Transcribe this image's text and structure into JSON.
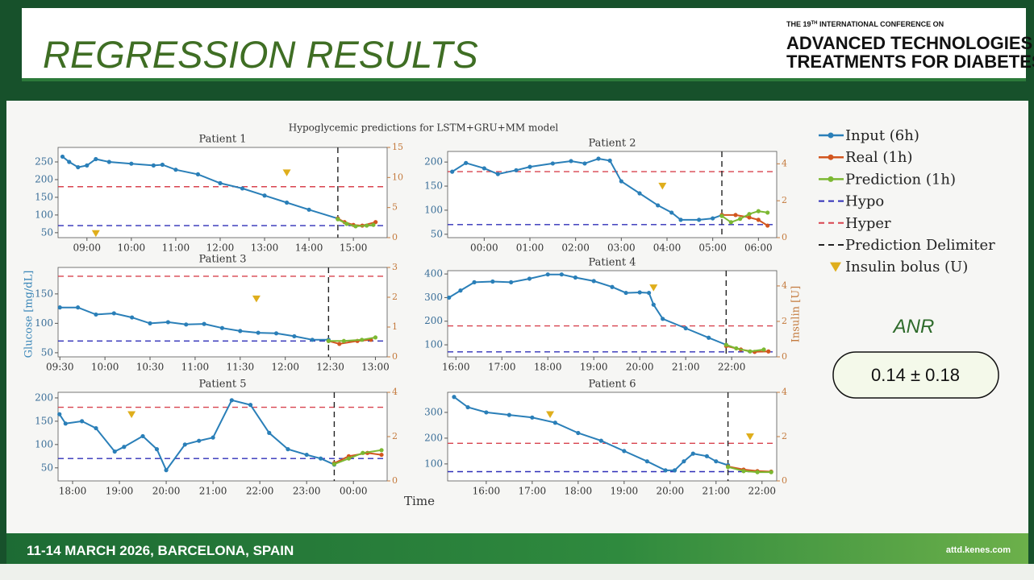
{
  "slide": {
    "title": "REGRESSION RESULTS",
    "conference": {
      "pre": "THE 19",
      "sup": "TH",
      "post": " INTERNATIONAL CONFERENCE ON",
      "line1": "ADVANCED TECHNOLOGIES &",
      "line2": "TREATMENTS FOR DIABETES"
    },
    "footer_left": "11-14 MARCH 2026, BARCELONA, SPAIN",
    "footer_right": "attd.kenes.com"
  },
  "figure": {
    "title": "Hypoglycemic predictions for LSTM+GRU+MM model",
    "ylabel": "Glucose [mg/dL]",
    "y2label": "Insulin [U]",
    "xlabel": "Time"
  },
  "legend": {
    "input": {
      "name": "Input (6h)",
      "color": "#2a7fb8"
    },
    "real": {
      "name": "Real (1h)",
      "color": "#d2561f"
    },
    "prediction": {
      "name": "Prediction (1h)",
      "color": "#7cb832"
    },
    "hypo": {
      "name": "Hypo",
      "color": "#2f2fb8",
      "value": 70
    },
    "hyper": {
      "name": "Hyper",
      "color": "#d8434f",
      "value": 180
    },
    "delimiter": {
      "name": "Prediction Delimiter",
      "color": "#222222"
    },
    "bolus": {
      "name": "Insulin bolus (U)",
      "color": "#dfae1c"
    }
  },
  "metric": {
    "label": "ANR",
    "value": "0.14 ± 0.18"
  },
  "chart_data": [
    {
      "type": "line",
      "title": "Patient 1",
      "xlim": [
        8.35,
        15.76
      ],
      "ylim": [
        36,
        291
      ],
      "y2lim": [
        0,
        15
      ],
      "xticks": [
        {
          "value": 9,
          "label": "09:00"
        },
        {
          "value": 10,
          "label": "10:00"
        },
        {
          "value": 11,
          "label": "11:00"
        },
        {
          "value": 12,
          "label": "12:00"
        },
        {
          "value": 13,
          "label": "13:00"
        },
        {
          "value": 14,
          "label": "14:00"
        },
        {
          "value": 15,
          "label": "15:00"
        }
      ],
      "yticks": [
        50,
        100,
        150,
        200,
        250
      ],
      "y2ticks": [
        0,
        5,
        10,
        15
      ],
      "delimiter": 14.65,
      "input": {
        "x": [
          8.45,
          8.6,
          8.8,
          9.0,
          9.2,
          9.5,
          10.0,
          10.5,
          10.7,
          11.0,
          11.5,
          12.0,
          12.5,
          13.0,
          13.5,
          14.0,
          14.65
        ],
        "values": [
          265,
          250,
          235,
          240,
          258,
          250,
          245,
          240,
          242,
          228,
          215,
          190,
          175,
          155,
          135,
          115,
          90
        ]
      },
      "real": {
        "x": [
          14.65,
          14.8,
          15.0,
          15.2,
          15.5
        ],
        "values": [
          90,
          80,
          72,
          70,
          80
        ]
      },
      "prediction": {
        "x": [
          14.65,
          14.85,
          15.05,
          15.3,
          15.45
        ],
        "values": [
          88,
          75,
          68,
          70,
          72
        ]
      },
      "bolus": {
        "axis": "y2",
        "x": [
          9.2,
          13.5
        ],
        "values": [
          0.7,
          10.8
        ]
      }
    },
    {
      "type": "line",
      "title": "Patient 2",
      "xlim": [
        23.2,
        30.4
      ],
      "ylim": [
        43,
        222
      ],
      "y2lim": [
        0,
        4.67
      ],
      "xticks": [
        {
          "value": 24,
          "label": "00:00"
        },
        {
          "value": 25,
          "label": "01:00"
        },
        {
          "value": 26,
          "label": "02:00"
        },
        {
          "value": 27,
          "label": "03:00"
        },
        {
          "value": 28,
          "label": "04:00"
        },
        {
          "value": 29,
          "label": "05:00"
        },
        {
          "value": 30,
          "label": "06:00"
        }
      ],
      "yticks": [
        50,
        100,
        150,
        200
      ],
      "y2ticks": [
        0,
        2,
        4
      ],
      "delimiter": 29.2,
      "input": {
        "x": [
          23.3,
          23.6,
          24.0,
          24.3,
          24.7,
          25.0,
          25.5,
          25.9,
          26.2,
          26.5,
          26.75,
          27.0,
          27.4,
          27.8,
          28.1,
          28.3,
          28.7,
          29.0,
          29.2
        ],
        "values": [
          180,
          198,
          187,
          175,
          183,
          190,
          197,
          202,
          197,
          207,
          203,
          160,
          135,
          110,
          95,
          80,
          80,
          83,
          90
        ]
      },
      "real": {
        "x": [
          29.2,
          29.5,
          29.8,
          30.0,
          30.2
        ],
        "values": [
          90,
          90,
          85,
          80,
          68
        ]
      },
      "prediction": {
        "x": [
          29.2,
          29.4,
          29.6,
          29.8,
          30.0,
          30.2
        ],
        "values": [
          88,
          75,
          82,
          92,
          98,
          95
        ]
      },
      "bolus": {
        "axis": "y2",
        "x": [
          27.9
        ],
        "values": [
          2.8
        ]
      }
    },
    {
      "type": "line",
      "title": "Patient 3",
      "xlim": [
        9.48,
        13.13
      ],
      "ylim": [
        43,
        195
      ],
      "y2lim": [
        0,
        3
      ],
      "xticks": [
        {
          "value": 9.5,
          "label": "09:30"
        },
        {
          "value": 10,
          "label": "10:00"
        },
        {
          "value": 10.5,
          "label": "10:30"
        },
        {
          "value": 11,
          "label": "11:00"
        },
        {
          "value": 11.5,
          "label": "11:30"
        },
        {
          "value": 12,
          "label": "12:00"
        },
        {
          "value": 12.5,
          "label": "12:30"
        },
        {
          "value": 13,
          "label": "13:00"
        }
      ],
      "yticks": [
        50,
        100,
        150
      ],
      "y2ticks": [
        0,
        1,
        2,
        3
      ],
      "delimiter": 12.48,
      "input": {
        "x": [
          9.5,
          9.7,
          9.9,
          10.1,
          10.3,
          10.5,
          10.7,
          10.9,
          11.1,
          11.3,
          11.5,
          11.7,
          11.9,
          12.1,
          12.3,
          12.48
        ],
        "values": [
          127,
          127,
          115,
          117,
          110,
          100,
          102,
          98,
          99,
          92,
          87,
          84,
          83,
          78,
          72,
          72
        ]
      },
      "real": {
        "x": [
          12.48,
          12.6,
          12.8,
          12.95
        ],
        "values": [
          70,
          65,
          70,
          72
        ]
      },
      "prediction": {
        "x": [
          12.48,
          12.65,
          12.85,
          13.0
        ],
        "values": [
          70,
          70,
          72,
          76
        ]
      },
      "bolus": {
        "axis": "y2",
        "x": [
          11.68
        ],
        "values": [
          1.95
        ]
      }
    },
    {
      "type": "line",
      "title": "Patient 4",
      "xlim": [
        15.82,
        22.98
      ],
      "ylim": [
        49,
        414
      ],
      "y2lim": [
        0,
        4.86
      ],
      "xticks": [
        {
          "value": 16,
          "label": "16:00"
        },
        {
          "value": 17,
          "label": "17:00"
        },
        {
          "value": 18,
          "label": "18:00"
        },
        {
          "value": 19,
          "label": "19:00"
        },
        {
          "value": 20,
          "label": "20:00"
        },
        {
          "value": 21,
          "label": "21:00"
        },
        {
          "value": 22,
          "label": "22:00"
        }
      ],
      "yticks": [
        100,
        200,
        300,
        400
      ],
      "y2ticks": [
        0,
        2,
        4
      ],
      "delimiter": 21.88,
      "input": {
        "x": [
          15.85,
          16.1,
          16.4,
          16.8,
          17.2,
          17.6,
          18.0,
          18.3,
          18.6,
          19.0,
          19.4,
          19.7,
          20.0,
          20.2,
          20.3,
          20.5,
          21.0,
          21.5,
          21.88
        ],
        "values": [
          300,
          330,
          365,
          368,
          365,
          380,
          398,
          398,
          385,
          370,
          345,
          320,
          322,
          320,
          270,
          210,
          170,
          130,
          100
        ]
      },
      "real": {
        "x": [
          21.88,
          22.2,
          22.5,
          22.8
        ],
        "values": [
          95,
          80,
          70,
          72
        ]
      },
      "prediction": {
        "x": [
          21.88,
          22.1,
          22.4,
          22.7
        ],
        "values": [
          100,
          85,
          72,
          80
        ]
      },
      "bolus": {
        "axis": "y2",
        "x": [
          20.3
        ],
        "values": [
          3.9
        ]
      }
    },
    {
      "type": "line",
      "title": "Patient 5",
      "xlim": [
        17.69,
        24.72
      ],
      "ylim": [
        22,
        212
      ],
      "y2lim": [
        0,
        4
      ],
      "xticks": [
        {
          "value": 18,
          "label": "18:00"
        },
        {
          "value": 19,
          "label": "19:00"
        },
        {
          "value": 20,
          "label": "20:00"
        },
        {
          "value": 21,
          "label": "21:00"
        },
        {
          "value": 22,
          "label": "22:00"
        },
        {
          "value": 23,
          "label": "23:00"
        },
        {
          "value": 24,
          "label": "00:00"
        }
      ],
      "yticks": [
        50,
        100,
        150,
        200
      ],
      "y2ticks": [
        0,
        2,
        4
      ],
      "delimiter": 23.59,
      "input": {
        "x": [
          17.72,
          17.85,
          18.2,
          18.5,
          18.9,
          19.1,
          19.5,
          19.8,
          20.0,
          20.4,
          20.7,
          21.0,
          21.4,
          21.8,
          22.2,
          22.6,
          23.0,
          23.3,
          23.59
        ],
        "values": [
          165,
          145,
          150,
          135,
          85,
          95,
          118,
          90,
          45,
          100,
          108,
          115,
          195,
          185,
          125,
          90,
          78,
          70,
          57
        ]
      },
      "real": {
        "x": [
          23.59,
          23.9,
          24.3,
          24.6
        ],
        "values": [
          60,
          75,
          82,
          78
        ]
      },
      "prediction": {
        "x": [
          23.59,
          23.9,
          24.2,
          24.6
        ],
        "values": [
          58,
          70,
          82,
          88
        ]
      },
      "bolus": {
        "axis": "y2",
        "x": [
          19.26
        ],
        "values": [
          3.0
        ]
      }
    },
    {
      "type": "line",
      "title": "Patient 6",
      "xlim": [
        15.16,
        22.32
      ],
      "ylim": [
        34,
        378
      ],
      "y2lim": [
        0,
        4
      ],
      "xticks": [
        {
          "value": 16,
          "label": "16:00"
        },
        {
          "value": 17,
          "label": "17:00"
        },
        {
          "value": 18,
          "label": "18:00"
        },
        {
          "value": 19,
          "label": "19:00"
        },
        {
          "value": 20,
          "label": "20:00"
        },
        {
          "value": 21,
          "label": "21:00"
        },
        {
          "value": 22,
          "label": "22:00"
        }
      ],
      "yticks": [
        100,
        200,
        300
      ],
      "y2ticks": [
        0,
        2,
        4
      ],
      "delimiter": 21.26,
      "input": {
        "x": [
          15.3,
          15.6,
          16.0,
          16.5,
          17.0,
          17.5,
          18.0,
          18.5,
          19.0,
          19.5,
          19.9,
          20.1,
          20.3,
          20.5,
          20.8,
          21.0,
          21.26
        ],
        "values": [
          360,
          320,
          300,
          290,
          280,
          260,
          220,
          190,
          150,
          110,
          75,
          75,
          110,
          140,
          130,
          110,
          95
        ]
      },
      "real": {
        "x": [
          21.26,
          21.6,
          21.9,
          22.2
        ],
        "values": [
          90,
          78,
          72,
          70
        ]
      },
      "prediction": {
        "x": [
          21.26,
          21.6,
          21.9,
          22.2
        ],
        "values": [
          88,
          72,
          68,
          68
        ]
      },
      "bolus": {
        "axis": "y2",
        "x": [
          17.39,
          21.74
        ],
        "values": [
          3.0,
          2.0
        ]
      }
    }
  ]
}
